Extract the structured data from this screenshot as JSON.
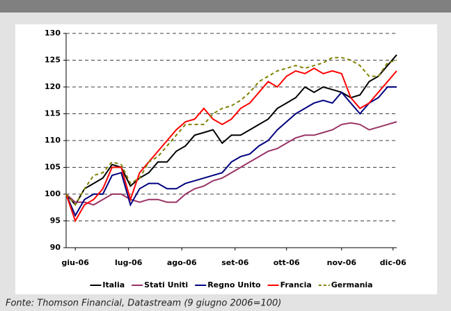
{
  "chart_data": {
    "type": "line",
    "caption": "Fonte: Thomson Financial, Datastream (9 giugno 2006=100)",
    "x": [
      0,
      5,
      10,
      15,
      20,
      25,
      30,
      35,
      40,
      45,
      50,
      55,
      60,
      65,
      70,
      75,
      80,
      85,
      90,
      95,
      100,
      105,
      110,
      115,
      120,
      125,
      130,
      135,
      140,
      145,
      150,
      155,
      160,
      165,
      170,
      175,
      180
    ],
    "xlim": [
      0,
      180
    ],
    "xticks": [
      {
        "value": 5,
        "label": "giu-06"
      },
      {
        "value": 34,
        "label": "lug-06"
      },
      {
        "value": 63,
        "label": "ago-06"
      },
      {
        "value": 92,
        "label": "set-06"
      },
      {
        "value": 120,
        "label": "ott-06"
      },
      {
        "value": 150,
        "label": "nov-06"
      },
      {
        "value": 178,
        "label": "dic-06"
      }
    ],
    "ylim": [
      90,
      130
    ],
    "yticks": [
      90,
      95,
      100,
      105,
      110,
      115,
      120,
      125,
      130
    ],
    "grid": true,
    "legend": "bottom",
    "series": [
      {
        "name": "Italia",
        "color": "#000000",
        "dash": "solid",
        "values": [
          100,
          98,
          101,
          102,
          103,
          105.5,
          105,
          101.5,
          103,
          104,
          106,
          106,
          108,
          109,
          111,
          111.5,
          112,
          109.5,
          111,
          111,
          112,
          113,
          114,
          116,
          117,
          118,
          120,
          119,
          120,
          119.5,
          119,
          118,
          118.5,
          121,
          122,
          124,
          126
        ]
      },
      {
        "name": "Stati Uniti",
        "color": "#993366",
        "dash": "solid",
        "values": [
          100,
          98.5,
          98.5,
          98,
          99,
          100,
          100,
          99,
          98.5,
          99,
          99,
          98.5,
          98.5,
          100,
          101,
          101.5,
          102.5,
          103,
          104,
          105,
          106,
          107,
          108,
          108.5,
          109.5,
          110.5,
          111,
          111,
          111.5,
          112,
          113,
          113.3,
          113,
          112,
          112.5,
          113,
          113.5
        ]
      },
      {
        "name": "Regno Unito",
        "color": "#000080",
        "dash": "solid",
        "values": [
          100,
          96,
          99,
          100,
          100,
          103.5,
          104,
          98,
          101,
          102,
          102,
          101,
          101,
          102,
          102.5,
          103,
          103.5,
          104,
          106,
          107,
          107.5,
          109,
          110,
          112,
          113.5,
          115,
          116,
          117,
          117.5,
          117,
          119,
          117,
          115,
          117,
          118,
          120,
          120
        ]
      },
      {
        "name": "Francia",
        "color": "#ff0000",
        "dash": "solid",
        "values": [
          100,
          95,
          98,
          99,
          101,
          105,
          105,
          99,
          104,
          106,
          108,
          110,
          112,
          113.5,
          114,
          116,
          114,
          113,
          114,
          116,
          117,
          119,
          121,
          120,
          122,
          123,
          122.5,
          123.5,
          122.5,
          123,
          122.5,
          118,
          116,
          117,
          119,
          121,
          123
        ]
      },
      {
        "name": "Germania",
        "color": "#808000",
        "dash": "dashed",
        "values": [
          100,
          98,
          101,
          103.5,
          104,
          106,
          105.5,
          102,
          103,
          106,
          107,
          109,
          111,
          113,
          113,
          113,
          115,
          116,
          116.5,
          117.5,
          119,
          121,
          122,
          123,
          123.5,
          124,
          123.5,
          124,
          124.5,
          125.5,
          125.5,
          125,
          124,
          122,
          122,
          124.5,
          125
        ]
      }
    ]
  }
}
